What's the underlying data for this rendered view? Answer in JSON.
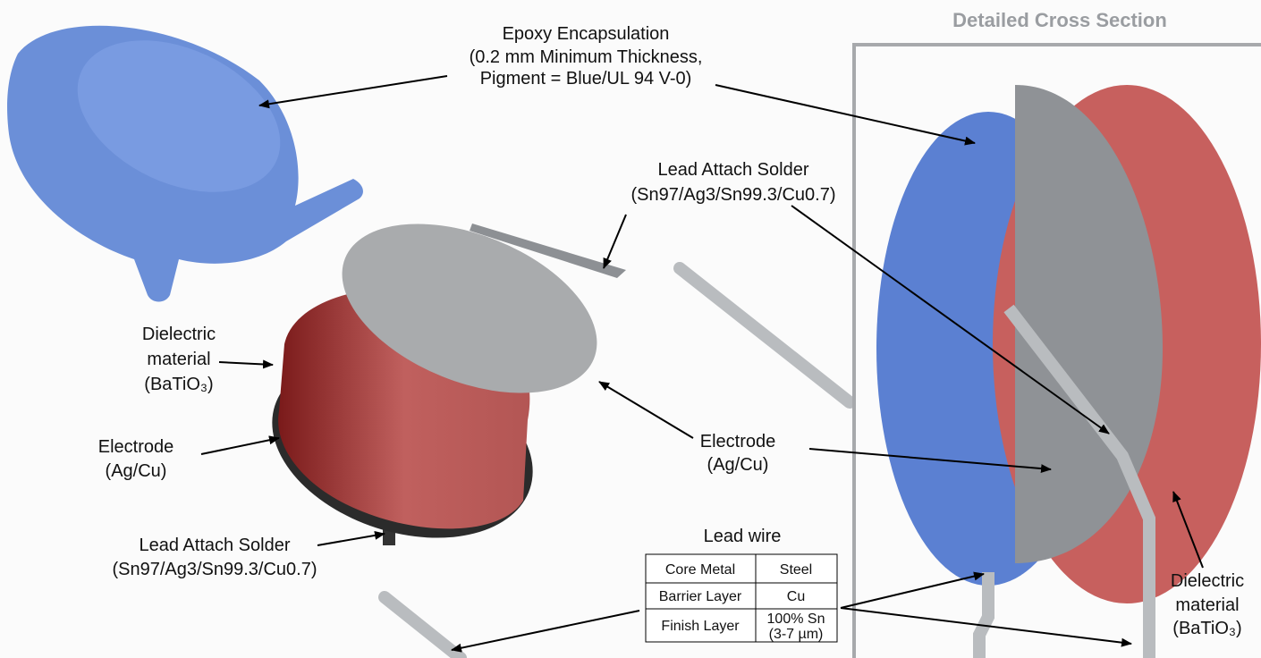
{
  "title": "Detailed Cross Section",
  "labels": {
    "epoxy": [
      "Epoxy Encapsulation",
      "(0.2 mm Minimum Thickness,",
      "Pigment = Blue/UL 94 V-0)"
    ],
    "solder_top": [
      "Lead Attach Solder",
      "(Sn97/Ag3/Sn99.3/Cu0.7)"
    ],
    "dielectric_left": [
      "Dielectric",
      "material",
      "(BaTiO₃)"
    ],
    "electrode_left": [
      "Electrode",
      "(Ag/Cu)"
    ],
    "solder_bottom": [
      "Lead Attach Solder",
      "(Sn97/Ag3/Sn99.3/Cu0.7)"
    ],
    "electrode_right": [
      "Electrode",
      "(Ag/Cu)"
    ],
    "dielectric_right": [
      "Dielectric",
      "material",
      "(BaTiO₃)"
    ]
  },
  "table": {
    "title": "Lead wire",
    "rows": [
      [
        "Core Metal",
        [
          "Steel"
        ]
      ],
      [
        "Barrier Layer",
        [
          "Cu"
        ]
      ],
      [
        "Finish Layer",
        [
          "100% Sn",
          "(3-7 µm)"
        ]
      ]
    ]
  }
}
